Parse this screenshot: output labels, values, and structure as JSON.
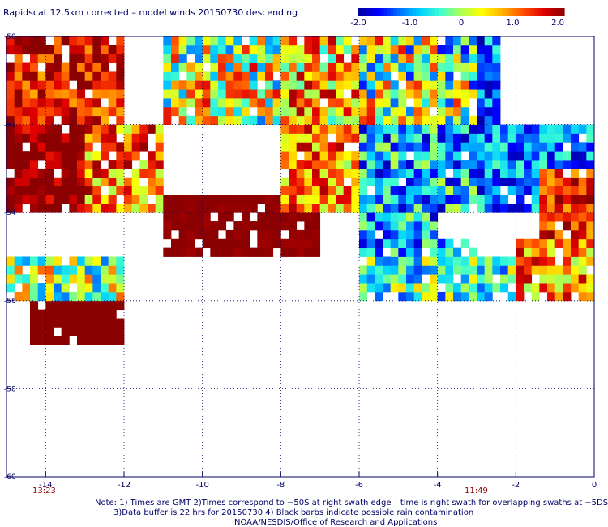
{
  "title": "Rapidscat 12.5km corrected – model winds 20150730 descending",
  "colorbar": {
    "ticks": [
      "-2.0",
      "-1.0",
      "0",
      "1.0",
      "2.0"
    ],
    "tick_values": [
      -2.0,
      -1.0,
      0,
      1.0,
      2.0
    ],
    "range": [
      -2.0,
      2.0
    ],
    "colors": [
      "#0000a0",
      "#0000ff",
      "#0070ff",
      "#00d0ff",
      "#40ffd0",
      "#b0ff50",
      "#ffff00",
      "#ffb000",
      "#ff5000",
      "#e00000",
      "#8b0000"
    ]
  },
  "chart_data": {
    "type": "heatmap",
    "xlim": [
      -15,
      0
    ],
    "ylim": [
      -60,
      -50
    ],
    "x_ticks": [
      -14,
      -12,
      -10,
      -8,
      -6,
      -4,
      -2,
      0
    ],
    "x_tick_labels": [
      "-14",
      "-12",
      "-10",
      "-8",
      "-6",
      "-4",
      "-2",
      "0"
    ],
    "y_ticks": [
      -50,
      -52,
      -54,
      -56,
      -58,
      -60
    ],
    "y_tick_labels": [
      "-50",
      "-52",
      "-54",
      "-56",
      "-58",
      "-60"
    ],
    "grid": true,
    "value_range": [
      -2.0,
      2.0
    ],
    "regions": [
      {
        "x": [
          -15,
          -12
        ],
        "y": [
          -52,
          -50
        ],
        "level": 1.6,
        "spread": 0.8
      },
      {
        "x": [
          -15,
          -13
        ],
        "y": [
          -54,
          -52
        ],
        "level": 2.0,
        "spread": 0.6
      },
      {
        "x": [
          -13,
          -11
        ],
        "y": [
          -54,
          -52
        ],
        "level": 1.0,
        "spread": 1.0
      },
      {
        "x": [
          -11,
          -8
        ],
        "y": [
          -52,
          -50
        ],
        "level": 0.2,
        "spread": 1.4
      },
      {
        "x": [
          -8,
          -6
        ],
        "y": [
          -52,
          -50
        ],
        "level": 0.7,
        "spread": 1.2
      },
      {
        "x": [
          -6,
          -3
        ],
        "y": [
          -52,
          -50
        ],
        "level": 0.0,
        "spread": 1.6
      },
      {
        "x": [
          -3,
          0
        ],
        "y": [
          -52,
          -50
        ],
        "level": -1.2,
        "spread": 0.8
      },
      {
        "x": [
          -11,
          -7
        ],
        "y": [
          -55,
          -53.5
        ],
        "level": 2.0,
        "spread": 0.1
      },
      {
        "x": [
          -8,
          -6
        ],
        "y": [
          -54,
          -52
        ],
        "level": 0.9,
        "spread": 1.0
      },
      {
        "x": [
          -6,
          -3
        ],
        "y": [
          -55,
          -52
        ],
        "level": -0.9,
        "spread": 1.0
      },
      {
        "x": [
          -3,
          0
        ],
        "y": [
          -54,
          -52
        ],
        "level": -1.1,
        "spread": 0.8
      },
      {
        "x": [
          -1.5,
          0
        ],
        "y": [
          -55,
          -53
        ],
        "level": 1.5,
        "spread": 0.7
      },
      {
        "x": [
          -6,
          -2
        ],
        "y": [
          -56,
          -55
        ],
        "level": -0.4,
        "spread": 1.0
      },
      {
        "x": [
          -2,
          0
        ],
        "y": [
          -56,
          -54.5
        ],
        "level": 0.9,
        "spread": 1.0
      },
      {
        "x": [
          -15,
          -12
        ],
        "y": [
          -56,
          -55
        ],
        "level": 0.0,
        "spread": 1.2
      },
      {
        "x": [
          -14.5,
          -12
        ],
        "y": [
          -57,
          -56
        ],
        "level": 2.0,
        "spread": 0.0
      }
    ],
    "missing_regions": [
      {
        "x": [
          -12,
          -6
        ],
        "y": [
          -60,
          -55.5
        ]
      },
      {
        "x": [
          -15,
          -12
        ],
        "y": [
          -60,
          -57
        ]
      },
      {
        "x": [
          -6,
          0
        ],
        "y": [
          -60,
          -56
        ]
      },
      {
        "x": [
          -2.5,
          0
        ],
        "y": [
          -52,
          -50
        ]
      },
      {
        "x": [
          -4,
          -2.5
        ],
        "y": [
          -54.6,
          -54
        ]
      }
    ]
  },
  "times": {
    "left": "13:23",
    "right": "11:49"
  },
  "notes": [
    "Note: 1) Times are GMT 2)Times correspond to −50S at right swath edge – time is right swath for overlapping swaths at −5DS",
    "3)Data buffer is 22 hrs for 20150730 4) Black barbs indicate possible rain contamination",
    "NOAA/NESDIS/Office of Research and Applications"
  ]
}
